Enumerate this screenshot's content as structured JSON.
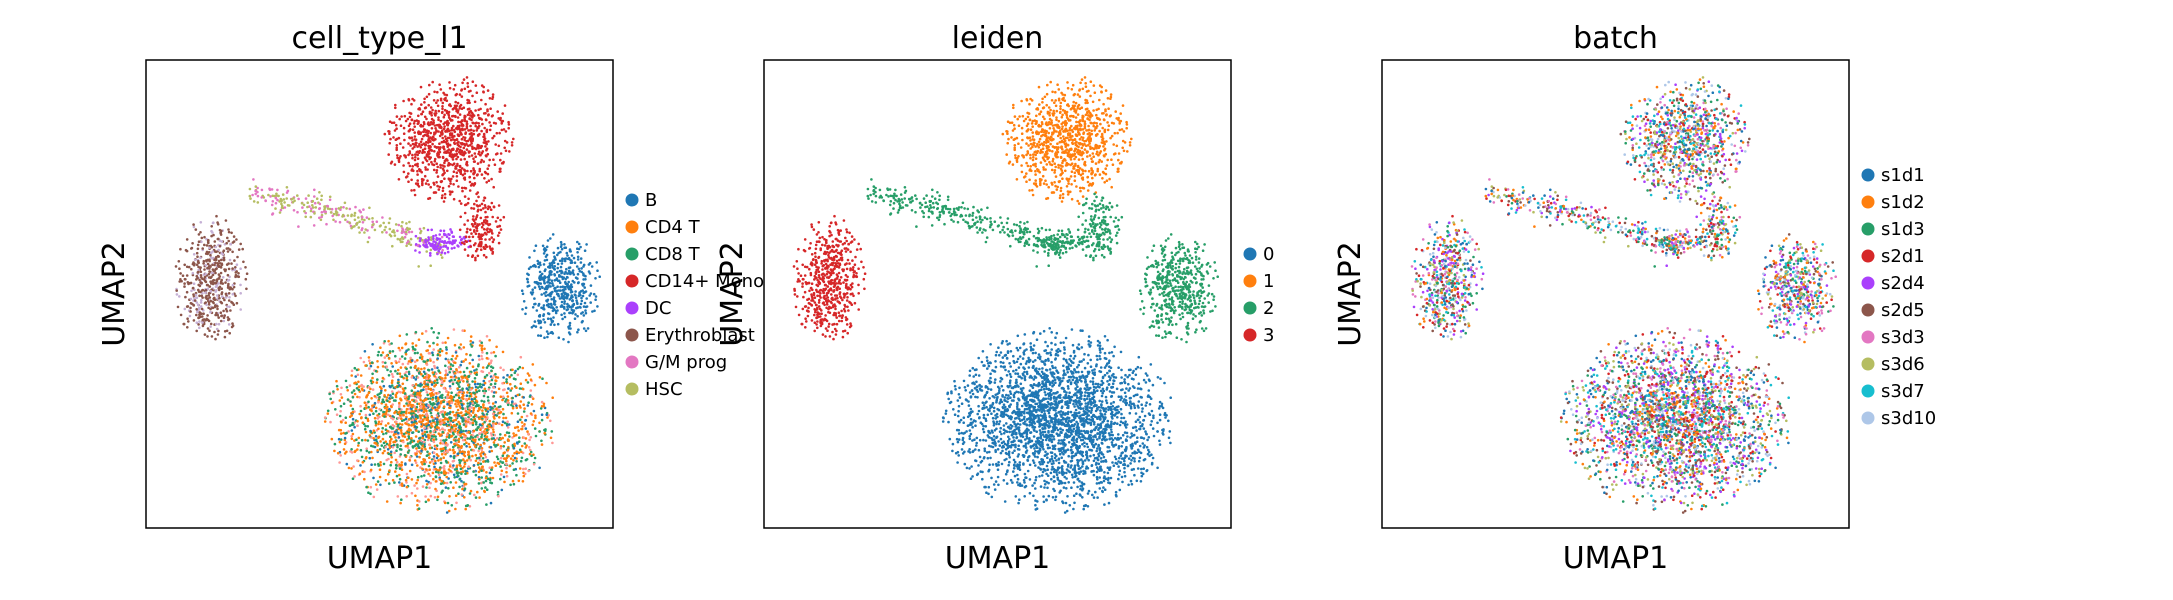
{
  "chart_data": [
    {
      "type": "scatter",
      "title": "cell_type_l1",
      "xlabel": "UMAP1",
      "ylabel": "UMAP2",
      "legend_position": "right",
      "ticks": "none",
      "series": [
        {
          "name": "B",
          "color": "#1f77b4"
        },
        {
          "name": "CD4 T",
          "color": "#ff7f0e"
        },
        {
          "name": "CD8 T",
          "color": "#279e68"
        },
        {
          "name": "CD14+ Mono",
          "color": "#d62728"
        },
        {
          "name": "DC",
          "color": "#aa40fc"
        },
        {
          "name": "Erythroblast",
          "color": "#8c564b"
        },
        {
          "name": "G/M prog",
          "color": "#e377c2"
        },
        {
          "name": "HSC",
          "color": "#b5bd61"
        }
      ]
    },
    {
      "type": "scatter",
      "title": "leiden",
      "xlabel": "UMAP1",
      "ylabel": "UMAP2",
      "legend_position": "right",
      "ticks": "none",
      "series": [
        {
          "name": "0",
          "color": "#1f77b4"
        },
        {
          "name": "1",
          "color": "#ff7f0e"
        },
        {
          "name": "2",
          "color": "#279e68"
        },
        {
          "name": "3",
          "color": "#d62728"
        }
      ]
    },
    {
      "type": "scatter",
      "title": "batch",
      "xlabel": "UMAP1",
      "ylabel": "UMAP2",
      "legend_position": "right",
      "ticks": "none",
      "series": [
        {
          "name": "s1d1",
          "color": "#1f77b4"
        },
        {
          "name": "s1d2",
          "color": "#ff7f0e"
        },
        {
          "name": "s1d3",
          "color": "#279e68"
        },
        {
          "name": "s2d1",
          "color": "#d62728"
        },
        {
          "name": "s2d4",
          "color": "#aa40fc"
        },
        {
          "name": "s2d5",
          "color": "#8c564b"
        },
        {
          "name": "s3d3",
          "color": "#e377c2"
        },
        {
          "name": "s3d6",
          "color": "#b5bd61"
        },
        {
          "name": "s3d7",
          "color": "#17becf"
        },
        {
          "name": "s3d10",
          "color": "#aec7e8"
        }
      ]
    }
  ]
}
